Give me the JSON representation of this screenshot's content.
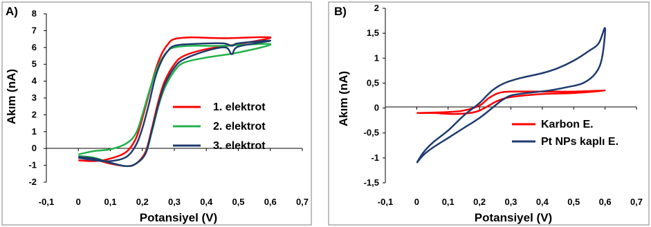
{
  "chart_data": [
    {
      "panel_label": "A)",
      "type": "line",
      "xlabel": "Potansiyel (V)",
      "ylabel": "Akım (nA)",
      "xlim": [
        -0.1,
        0.7
      ],
      "ylim": [
        -2,
        8
      ],
      "x_ticks": [
        "-0,1",
        "0",
        "0,1",
        "0,2",
        "0,3",
        "0,4",
        "0,5",
        "0,6",
        "0,7"
      ],
      "y_ticks": [
        "-2",
        "-1",
        "0",
        "1",
        "2",
        "3",
        "4",
        "5",
        "6",
        "7",
        "8"
      ],
      "legend_position": "right",
      "series": [
        {
          "name": "1. elektrot",
          "color": "#ff0000",
          "forward": [
            [
              0.0,
              -0.7
            ],
            [
              0.05,
              -0.75
            ],
            [
              0.1,
              -0.6
            ],
            [
              0.15,
              -0.2
            ],
            [
              0.18,
              0.6
            ],
            [
              0.2,
              1.8
            ],
            [
              0.22,
              3.2
            ],
            [
              0.24,
              4.6
            ],
            [
              0.26,
              5.6
            ],
            [
              0.28,
              6.2
            ],
            [
              0.3,
              6.5
            ],
            [
              0.35,
              6.6
            ],
            [
              0.45,
              6.55
            ],
            [
              0.6,
              6.6
            ]
          ],
          "reverse": [
            [
              0.6,
              6.5
            ],
            [
              0.5,
              6.2
            ],
            [
              0.4,
              5.9
            ],
            [
              0.33,
              5.5
            ],
            [
              0.3,
              5.0
            ],
            [
              0.27,
              4.0
            ],
            [
              0.25,
              2.8
            ],
            [
              0.23,
              1.2
            ],
            [
              0.21,
              -0.2
            ],
            [
              0.18,
              -0.9
            ],
            [
              0.15,
              -1.05
            ],
            [
              0.1,
              -0.9
            ],
            [
              0.05,
              -0.65
            ],
            [
              0.0,
              -0.55
            ]
          ]
        },
        {
          "name": "2. elektrot",
          "color": "#22b14c",
          "forward": [
            [
              0.0,
              -0.35
            ],
            [
              0.05,
              -0.15
            ],
            [
              0.1,
              -0.05
            ],
            [
              0.15,
              0.3
            ],
            [
              0.18,
              0.9
            ],
            [
              0.2,
              2.0
            ],
            [
              0.22,
              3.3
            ],
            [
              0.24,
              4.5
            ],
            [
              0.26,
              5.3
            ],
            [
              0.28,
              5.8
            ],
            [
              0.3,
              6.0
            ],
            [
              0.35,
              6.1
            ],
            [
              0.45,
              6.1
            ],
            [
              0.6,
              6.2
            ]
          ],
          "reverse": [
            [
              0.6,
              6.0
            ],
            [
              0.5,
              5.7
            ],
            [
              0.4,
              5.4
            ],
            [
              0.33,
              5.1
            ],
            [
              0.3,
              4.6
            ],
            [
              0.27,
              3.6
            ],
            [
              0.25,
              2.5
            ],
            [
              0.23,
              1.0
            ],
            [
              0.21,
              -0.3
            ],
            [
              0.18,
              -0.9
            ],
            [
              0.15,
              -1.05
            ],
            [
              0.1,
              -0.85
            ],
            [
              0.05,
              -0.55
            ],
            [
              0.0,
              -0.45
            ]
          ]
        },
        {
          "name": "3. elektrot",
          "color": "#1f3a6e",
          "forward": [
            [
              0.0,
              -0.55
            ],
            [
              0.05,
              -0.7
            ],
            [
              0.1,
              -0.75
            ],
            [
              0.15,
              -0.5
            ],
            [
              0.18,
              0.2
            ],
            [
              0.2,
              1.2
            ],
            [
              0.22,
              2.6
            ],
            [
              0.24,
              4.2
            ],
            [
              0.26,
              5.2
            ],
            [
              0.28,
              5.8
            ],
            [
              0.3,
              6.1
            ],
            [
              0.35,
              6.2
            ],
            [
              0.45,
              6.25
            ],
            [
              0.48,
              6.1
            ],
            [
              0.5,
              6.25
            ],
            [
              0.6,
              6.4
            ]
          ],
          "reverse": [
            [
              0.6,
              6.3
            ],
            [
              0.5,
              6.05
            ],
            [
              0.48,
              5.6
            ],
            [
              0.46,
              6.0
            ],
            [
              0.4,
              5.8
            ],
            [
              0.33,
              5.3
            ],
            [
              0.3,
              4.8
            ],
            [
              0.27,
              3.8
            ],
            [
              0.25,
              2.6
            ],
            [
              0.23,
              1.1
            ],
            [
              0.21,
              -0.3
            ],
            [
              0.18,
              -0.9
            ],
            [
              0.15,
              -1.05
            ],
            [
              0.1,
              -0.85
            ],
            [
              0.05,
              -0.6
            ],
            [
              0.0,
              -0.5
            ]
          ]
        }
      ]
    },
    {
      "panel_label": "B)",
      "type": "line",
      "xlabel": "Potansiyel (V)",
      "ylabel": "Akım (nA)",
      "xlim": [
        -0.1,
        0.7
      ],
      "ylim": [
        -1.5,
        2
      ],
      "x_ticks": [
        "-0,1",
        "0",
        "0,1",
        "0,2",
        "0,3",
        "0,4",
        "0,5",
        "0,6",
        "0,7"
      ],
      "y_ticks": [
        "-1,5",
        "-1",
        "-0,5",
        "0",
        "0,5",
        "1",
        "1,5",
        "2"
      ],
      "legend_position": "bottom-right",
      "series": [
        {
          "name": "Karbon E.",
          "color": "#ff0000",
          "forward": [
            [
              0.0,
              -0.1
            ],
            [
              0.1,
              -0.08
            ],
            [
              0.15,
              -0.05
            ],
            [
              0.2,
              0.05
            ],
            [
              0.23,
              0.2
            ],
            [
              0.26,
              0.3
            ],
            [
              0.3,
              0.33
            ],
            [
              0.4,
              0.33
            ],
            [
              0.5,
              0.33
            ],
            [
              0.6,
              0.35
            ]
          ],
          "reverse": [
            [
              0.6,
              0.33
            ],
            [
              0.5,
              0.3
            ],
            [
              0.4,
              0.28
            ],
            [
              0.3,
              0.22
            ],
            [
              0.26,
              0.15
            ],
            [
              0.23,
              0.05
            ],
            [
              0.2,
              -0.05
            ],
            [
              0.17,
              -0.1
            ],
            [
              0.12,
              -0.12
            ],
            [
              0.05,
              -0.1
            ],
            [
              0.0,
              -0.1
            ]
          ]
        },
        {
          "name": "Pt NPs kaplı E.",
          "color": "#1f3a6e",
          "forward": [
            [
              0.0,
              -1.1
            ],
            [
              0.02,
              -0.9
            ],
            [
              0.05,
              -0.7
            ],
            [
              0.1,
              -0.45
            ],
            [
              0.15,
              -0.15
            ],
            [
              0.2,
              0.1
            ],
            [
              0.24,
              0.35
            ],
            [
              0.28,
              0.5
            ],
            [
              0.33,
              0.6
            ],
            [
              0.4,
              0.7
            ],
            [
              0.45,
              0.8
            ],
            [
              0.5,
              0.95
            ],
            [
              0.55,
              1.15
            ],
            [
              0.58,
              1.3
            ],
            [
              0.6,
              1.6
            ]
          ],
          "reverse": [
            [
              0.6,
              1.6
            ],
            [
              0.59,
              1.0
            ],
            [
              0.57,
              0.7
            ],
            [
              0.53,
              0.5
            ],
            [
              0.48,
              0.42
            ],
            [
              0.42,
              0.35
            ],
            [
              0.35,
              0.3
            ],
            [
              0.3,
              0.25
            ],
            [
              0.27,
              0.15
            ],
            [
              0.24,
              0.0
            ],
            [
              0.2,
              -0.2
            ],
            [
              0.15,
              -0.4
            ],
            [
              0.1,
              -0.6
            ],
            [
              0.05,
              -0.8
            ],
            [
              0.02,
              -0.95
            ],
            [
              0.0,
              -1.1
            ]
          ]
        }
      ]
    }
  ]
}
